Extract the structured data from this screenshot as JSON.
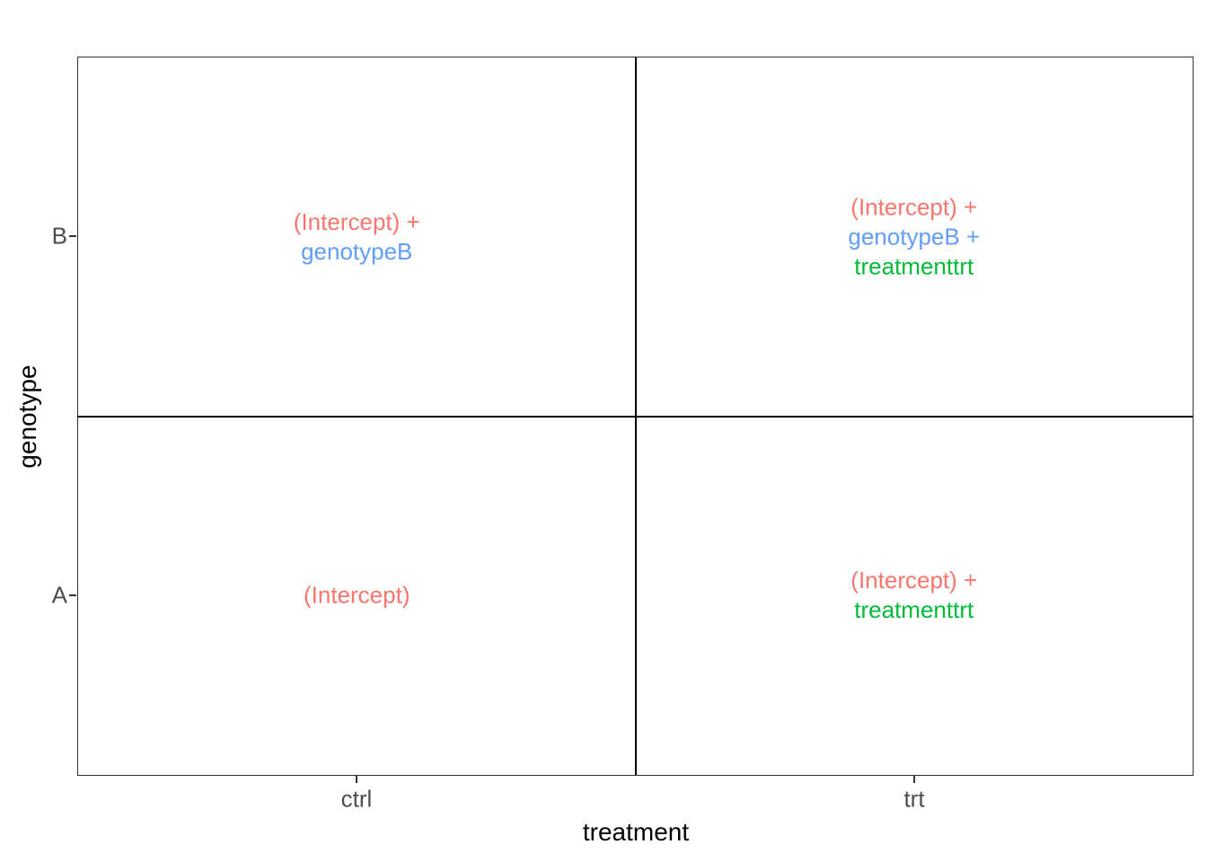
{
  "figure": {
    "background": "#FFFFFF"
  },
  "chart_data": {
    "type": "table",
    "description": "2x2 factorial grid (genotype x treatment) annotated with the linear-model coefficients contributing to each factor combination",
    "title": "",
    "xlabel": "treatment",
    "ylabel": "genotype",
    "x_categories": [
      "ctrl",
      "trt"
    ],
    "y_categories": [
      "A",
      "B"
    ],
    "y_order_note": "B is the top row, A is the bottom row",
    "grid": "off",
    "legend": "none",
    "panel_border_color": "#333333",
    "divider_color": "#000000",
    "axis_text_color": "#4D4D4D",
    "axis_title_color": "#000000",
    "term_colors": {
      "(Intercept)": "#F8766D",
      "genotypeB": "#619CFF",
      "treatmenttrt": "#00BA38"
    },
    "cells": [
      {
        "genotype": "B",
        "treatment": "ctrl",
        "position": "top-left",
        "terms": [
          {
            "text": "(Intercept) +",
            "color": "#F8766D"
          },
          {
            "text": "genotypeB",
            "color": "#619CFF"
          }
        ]
      },
      {
        "genotype": "B",
        "treatment": "trt",
        "position": "top-right",
        "terms": [
          {
            "text": "(Intercept) +",
            "color": "#F8766D"
          },
          {
            "text": "genotypeB +",
            "color": "#619CFF"
          },
          {
            "text": "treatmenttrt",
            "color": "#00BA38"
          }
        ]
      },
      {
        "genotype": "A",
        "treatment": "ctrl",
        "position": "bottom-left",
        "terms": [
          {
            "text": "(Intercept)",
            "color": "#F8766D"
          }
        ]
      },
      {
        "genotype": "A",
        "treatment": "trt",
        "position": "bottom-right",
        "terms": [
          {
            "text": "(Intercept) +",
            "color": "#F8766D"
          },
          {
            "text": "treatmenttrt",
            "color": "#00BA38"
          }
        ]
      }
    ]
  }
}
